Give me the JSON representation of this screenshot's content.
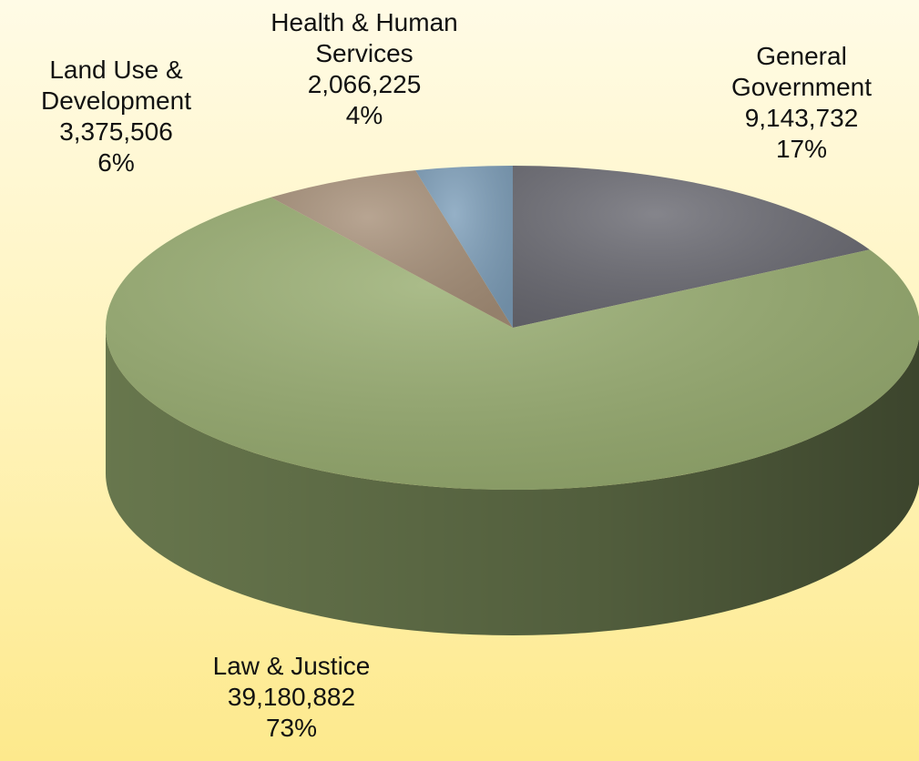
{
  "chart_data": {
    "type": "pie",
    "categories": [
      "General Government",
      "Law & Justice",
      "Land Use & Development",
      "Health & Human Services"
    ],
    "values": [
      9143732,
      39180882,
      3375506,
      2066225
    ],
    "value_labels": [
      "9,143,732",
      "39,180,882",
      "3,375,506",
      "2,066,225"
    ],
    "percents": [
      17,
      73,
      6,
      4
    ],
    "percent_labels": [
      "17%",
      "73%",
      "6%",
      "4%"
    ],
    "colors": [
      "#6a6a72",
      "#98ad70",
      "#a8917a",
      "#7e9fba"
    ]
  }
}
